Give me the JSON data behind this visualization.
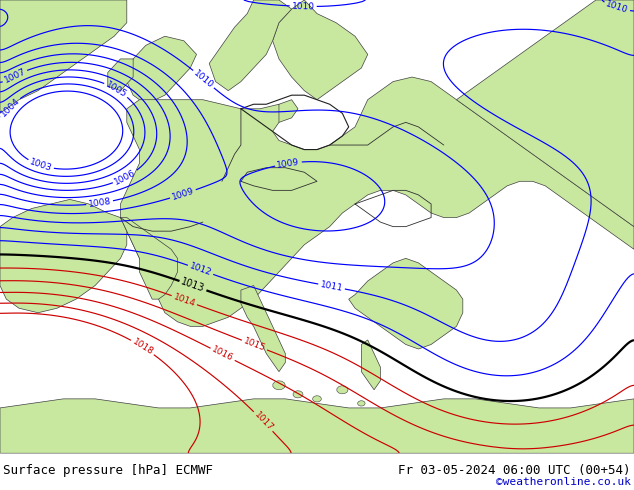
{
  "label_bottom_left": "Surface pressure [hPa] ECMWF",
  "label_bottom_right": "Fr 03-05-2024 06:00 UTC (00+54)",
  "label_copyright": "©weatheronline.co.uk",
  "land_color": "#c8e8a0",
  "sea_color": "#d0d8d8",
  "fig_bg": "#ffffff",
  "bottom_bar_color": "#ffffff",
  "bottom_text_color": "#000000",
  "copyright_color": "#0000cc",
  "border_color": "#404040",
  "contour_blue_color": "#0000ff",
  "contour_black_color": "#000000",
  "contour_red_color": "#cc0000",
  "label_fontsize": 9,
  "contour_label_fontsize": 6.5
}
